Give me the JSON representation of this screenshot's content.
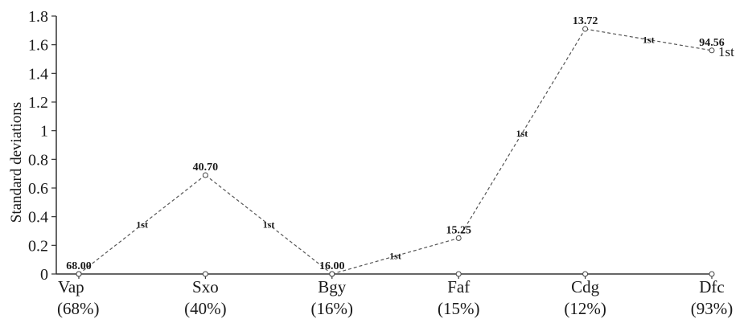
{
  "chart_data": {
    "type": "line",
    "title": "",
    "ylabel": "Standard deviations",
    "xlabel": "",
    "ylim": [
      0,
      1.8
    ],
    "yticks": [
      "0",
      "0.2",
      "0.4",
      "0.6",
      "0.8",
      "1",
      "1.2",
      "1.4",
      "1.6",
      "1.8"
    ],
    "yticks_values": [
      0,
      0.2,
      0.4,
      0.6,
      0.8,
      1,
      1.2,
      1.4,
      1.6,
      1.8
    ],
    "categories": [
      "Vap",
      "Sxo",
      "Bgy",
      "Faf",
      "Cdg",
      "Dfc"
    ],
    "category_subs": [
      "(68%)",
      "(40%)",
      "(16%)",
      "(15%)",
      "(12%)",
      "(93%)"
    ],
    "series": [
      {
        "values": [
          0.0,
          0.69,
          0.0,
          0.25,
          1.71,
          1.56
        ],
        "point_labels": [
          "68.00",
          "40.70",
          "16.00",
          "15.25",
          "13.72",
          "94.56"
        ],
        "segment_labels": [
          "1st",
          "1st",
          "1st",
          "1st",
          "1st"
        ],
        "end_label": "1st",
        "color": "#555555"
      }
    ],
    "grid": false,
    "legend": "none"
  }
}
